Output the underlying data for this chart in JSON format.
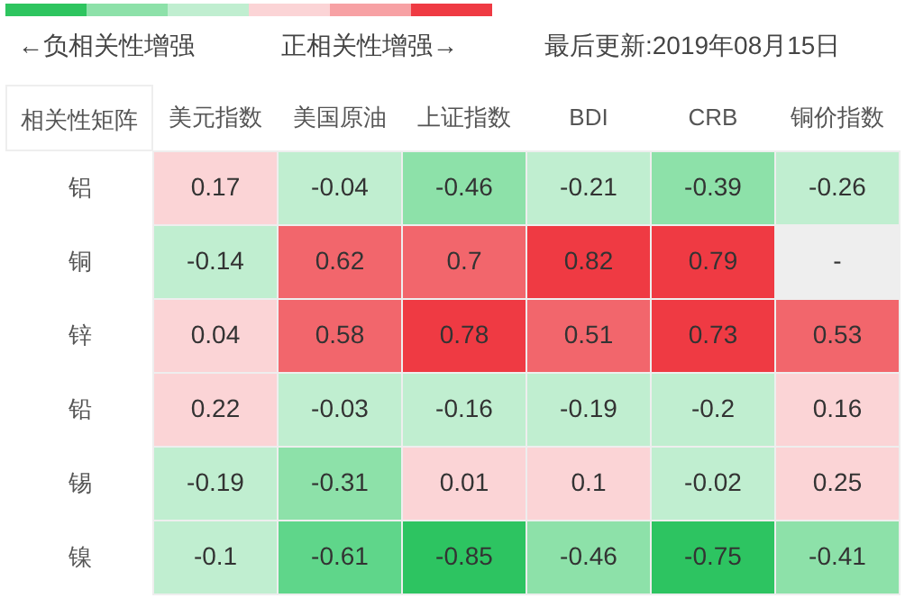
{
  "chart_data": {
    "type": "heatmap",
    "ylabel": "相关性矩阵",
    "data_labels": true,
    "annotations": [
      "←负相关性增强",
      "正相关性增强→",
      "最后更新:2019年08月15日",
      "-"
    ],
    "categories": [
      "美元指数",
      "美国原油",
      "上证指数",
      "BDI",
      "CRB",
      "铜价指数"
    ],
    "y_categories": [
      "铝",
      "铜",
      "锌",
      "铅",
      "锡",
      "镍"
    ],
    "cells": [
      [
        0.17,
        -0.04,
        -0.46,
        -0.21,
        -0.39,
        -0.26
      ],
      [
        -0.14,
        0.62,
        0.7,
        0.82,
        0.79,
        null
      ],
      [
        0.04,
        0.58,
        0.78,
        0.51,
        0.73,
        0.53
      ],
      [
        0.22,
        -0.03,
        -0.16,
        -0.19,
        -0.2,
        0.16
      ],
      [
        -0.19,
        -0.31,
        0.01,
        0.1,
        -0.02,
        0.25
      ],
      [
        -0.1,
        -0.61,
        -0.85,
        -0.46,
        -0.75,
        -0.41
      ]
    ],
    "colors": [
      [
        "#fbd4d6",
        "#c0eed0",
        "#8de1a9",
        "#c0eed0",
        "#8de1a9",
        "#c0eed0"
      ],
      [
        "#c0eed0",
        "#f2666c",
        "#f2666c",
        "#ef3a43",
        "#ef3a43",
        "#eeeeee"
      ],
      [
        "#fbd4d6",
        "#f2666c",
        "#ef3a43",
        "#f2666c",
        "#ef3a43",
        "#f2666c"
      ],
      [
        "#fbd4d6",
        "#c0eed0",
        "#c0eed0",
        "#c0eed0",
        "#c0eed0",
        "#fbd4d6"
      ],
      [
        "#c0eed0",
        "#8de1a9",
        "#fbd4d6",
        "#fbd4d6",
        "#c0eed0",
        "#fbd4d6"
      ],
      [
        "#c0eed0",
        "#5fd68a",
        "#2dc461",
        "#8de1a9",
        "#2dc461",
        "#8de1a9"
      ]
    ]
  }
}
